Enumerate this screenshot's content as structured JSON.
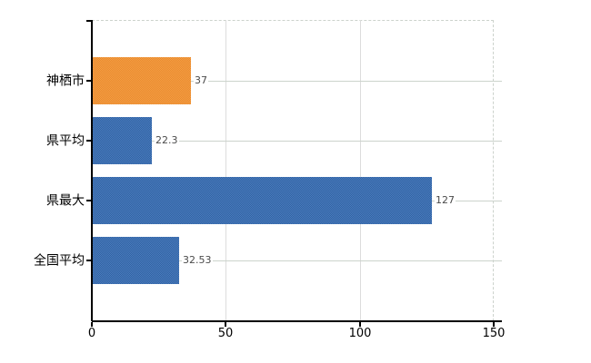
{
  "chart_data": {
    "type": "bar",
    "orientation": "horizontal",
    "title": "",
    "xlabel": "",
    "ylabel": "",
    "categories": [
      "神栖市",
      "県平均",
      "県最大",
      "全国平均"
    ],
    "values": [
      37,
      22.3,
      127,
      32.53
    ],
    "value_labels": [
      "37",
      "22.3",
      "127",
      "32.53"
    ],
    "bar_styles": [
      "highlight",
      "default",
      "default",
      "default"
    ],
    "xlim": [
      0,
      150
    ],
    "x_ticks": [
      0,
      50,
      100,
      150
    ],
    "x_tick_labels": [
      "0",
      "50",
      "100",
      "150"
    ],
    "grid": true,
    "legend_position": "none",
    "colors": {
      "highlight_bar": "#ee9439",
      "default_bar": "#3d6fb0",
      "axis": "#000000",
      "gridline": "#ccd3cc",
      "vertical_gridline": "#dcdcdc",
      "value_label_text": "#4a4a4a",
      "tick_label_text": "#000000"
    }
  }
}
